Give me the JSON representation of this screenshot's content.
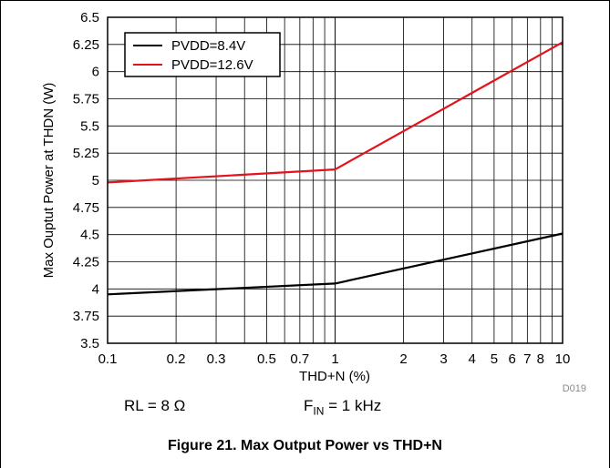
{
  "chart_data": {
    "type": "line",
    "xlabel": "THD+N (%)",
    "ylabel": "Max Ouptut Power at THDN (W)",
    "x_scale": "log",
    "xlim": [
      0.1,
      10
    ],
    "ylim": [
      3.5,
      6.5
    ],
    "x_ticks": [
      0.1,
      0.2,
      0.3,
      0.5,
      0.7,
      1,
      2,
      3,
      4,
      5,
      6,
      7,
      8,
      10
    ],
    "x_tick_labels": [
      "0.1",
      "0.2",
      "0.3",
      "0.5",
      "0.7",
      "1",
      "2",
      "3",
      "4",
      "5",
      "6",
      "7",
      "8",
      "10"
    ],
    "y_ticks": [
      3.5,
      3.75,
      4,
      4.25,
      4.5,
      4.75,
      5,
      5.25,
      5.5,
      5.75,
      6,
      6.25,
      6.5
    ],
    "y_tick_labels": [
      "3.5",
      "3.75",
      "4",
      "4.25",
      "4.5",
      "4.75",
      "5",
      "5.25",
      "5.5",
      "5.75",
      "6",
      "6.25",
      "6.5"
    ],
    "grid": true,
    "legend_position": "top-left",
    "series": [
      {
        "name": "PVDD=8.4V",
        "color": "#000000",
        "x": [
          0.1,
          1,
          10
        ],
        "y": [
          3.95,
          4.05,
          4.51
        ]
      },
      {
        "name": "PVDD=12.6V",
        "color": "#e3121b",
        "x": [
          0.1,
          1,
          10
        ],
        "y": [
          4.98,
          5.1,
          6.27
        ]
      }
    ]
  },
  "figure_id": "D019",
  "conditions": {
    "rl": "RL = 8 Ω",
    "fin_prefix": "F",
    "fin_sub": "IN",
    "fin_suffix": " = 1 kHz"
  },
  "caption": "Figure 21. Max Output Power vs THD+N"
}
